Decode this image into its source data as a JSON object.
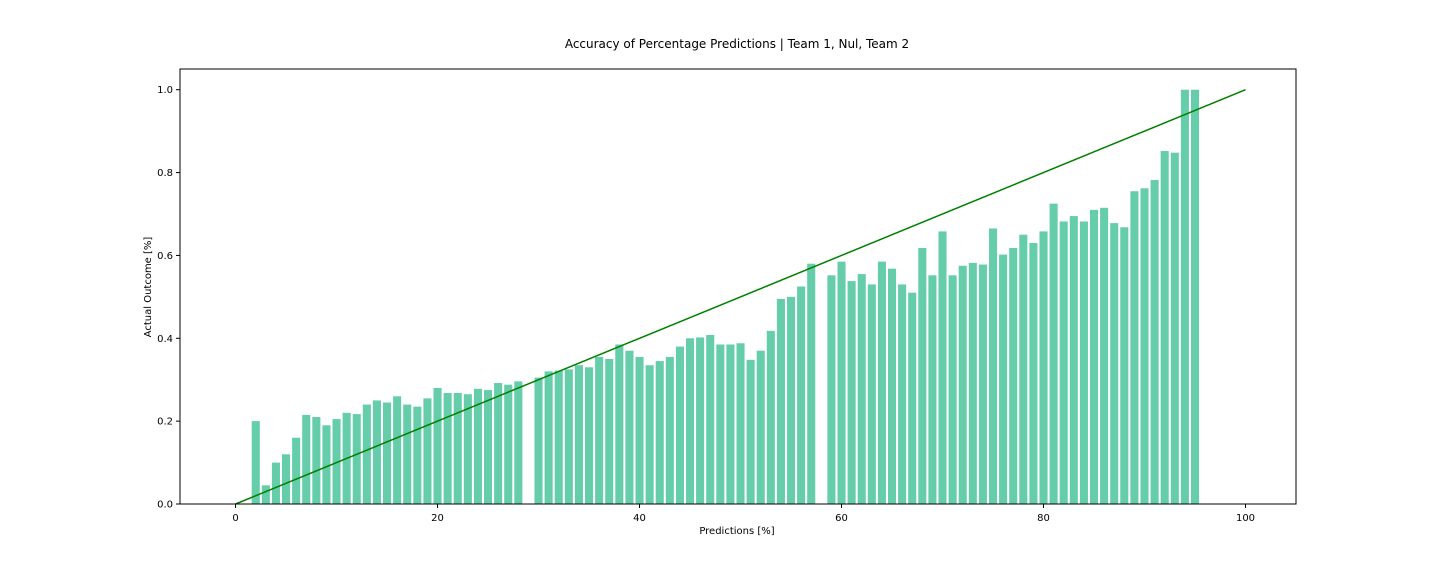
{
  "chart_data": {
    "type": "bar",
    "title": "Accuracy of Percentage Predictions | Team 1, Nul, Team 2",
    "xlabel": "Predictions [%]",
    "ylabel": "Actual Outcome [%]",
    "xlim": [
      -5.5,
      105
    ],
    "ylim": [
      0,
      1.05
    ],
    "xticks": [
      0,
      20,
      40,
      60,
      80,
      100
    ],
    "yticks": [
      0.0,
      0.2,
      0.4,
      0.6,
      0.8,
      1.0
    ],
    "bar_width": 0.8,
    "grid": false,
    "bar_color": "#66cdaa",
    "reference_line": {
      "x": [
        0,
        100
      ],
      "y": [
        0,
        1.0
      ],
      "color": "#008000"
    },
    "bars": {
      "x": [
        2,
        3,
        4,
        5,
        6,
        7,
        8,
        9,
        10,
        11,
        12,
        13,
        14,
        15,
        16,
        17,
        18,
        19,
        20,
        21,
        22,
        23,
        24,
        25,
        26,
        27,
        28,
        30,
        31,
        32,
        33,
        34,
        35,
        36,
        37,
        38,
        39,
        40,
        41,
        42,
        43,
        44,
        45,
        46,
        47,
        48,
        49,
        50,
        51,
        52,
        53,
        54,
        55,
        56,
        57,
        59,
        60,
        61,
        62,
        63,
        64,
        65,
        66,
        67,
        68,
        69,
        70,
        71,
        72,
        73,
        74,
        75,
        76,
        77,
        78,
        79,
        80,
        81,
        82,
        83,
        84,
        85,
        86,
        87,
        88,
        89,
        90,
        91,
        92,
        93,
        94,
        95
      ],
      "y": [
        0.2,
        0.045,
        0.1,
        0.12,
        0.16,
        0.215,
        0.21,
        0.19,
        0.205,
        0.22,
        0.217,
        0.24,
        0.25,
        0.245,
        0.26,
        0.24,
        0.235,
        0.255,
        0.28,
        0.268,
        0.268,
        0.265,
        0.278,
        0.275,
        0.292,
        0.288,
        0.296,
        0.305,
        0.32,
        0.322,
        0.325,
        0.335,
        0.33,
        0.355,
        0.35,
        0.385,
        0.37,
        0.355,
        0.335,
        0.345,
        0.355,
        0.38,
        0.4,
        0.402,
        0.408,
        0.385,
        0.385,
        0.388,
        0.348,
        0.37,
        0.418,
        0.495,
        0.5,
        0.525,
        0.58,
        0.552,
        0.585,
        0.538,
        0.555,
        0.53,
        0.585,
        0.568,
        0.53,
        0.51,
        0.618,
        0.552,
        0.658,
        0.552,
        0.575,
        0.582,
        0.578,
        0.665,
        0.602,
        0.618,
        0.65,
        0.63,
        0.658,
        0.725,
        0.682,
        0.695,
        0.682,
        0.71,
        0.715,
        0.678,
        0.668,
        0.755,
        0.762,
        0.782,
        0.852,
        0.848,
        1.0,
        1.0
      ]
    }
  }
}
